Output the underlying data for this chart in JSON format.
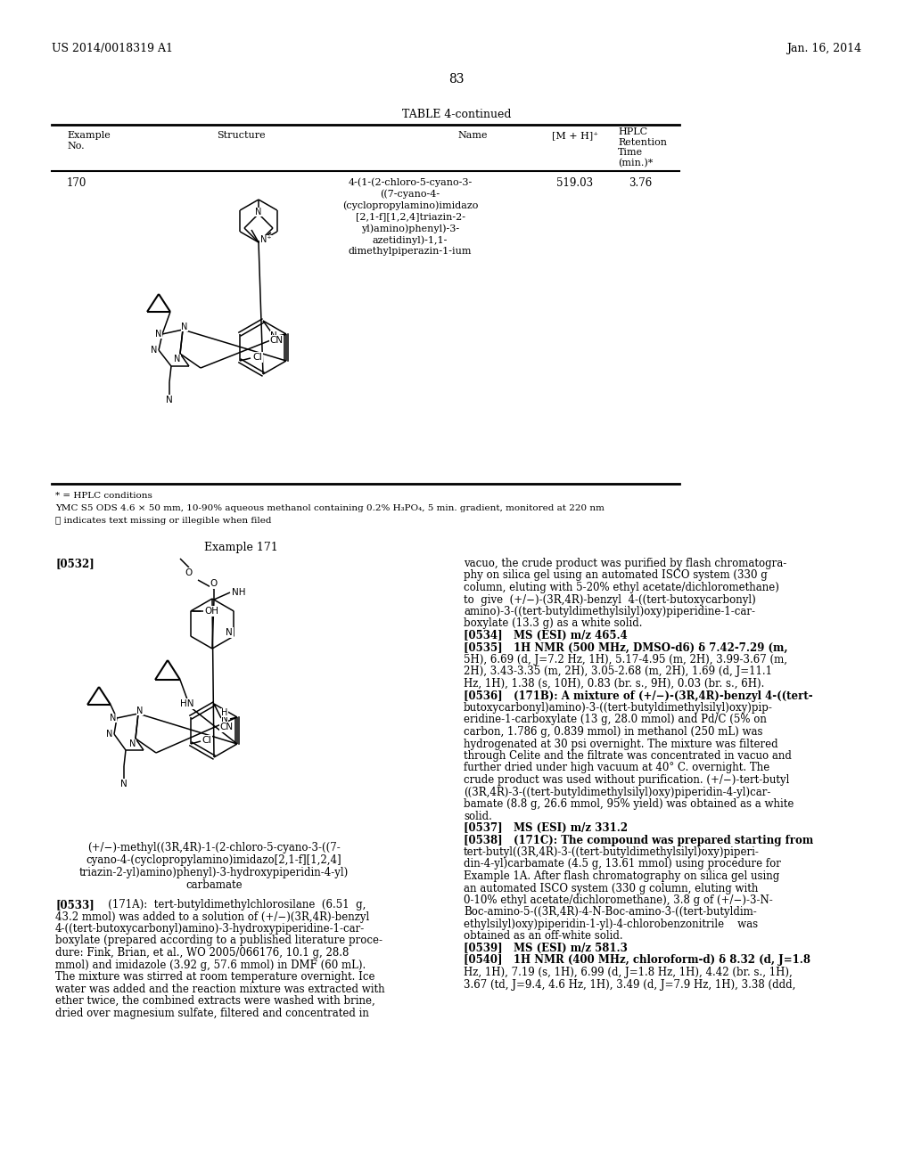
{
  "page_number": "83",
  "patent_left": "US 2014/0018319 A1",
  "patent_right": "Jan. 16, 2014",
  "table_title": "TABLE 4-continued",
  "example_no": "170",
  "name_170_lines": [
    "4-(1-(2-chloro-5-cyano-3-",
    "((7-cyano-4-",
    "(cyclopropylamino)imidazo",
    "[2,1-f][1,2,4]triazin-2-",
    "yl)amino)phenyl)-3-",
    "azetidinyl)-1,1-",
    "dimethylpiperazin-1-ium"
  ],
  "mh_170": "519.03",
  "rt_170": "3.76",
  "footnote1": "* = HPLC conditions",
  "footnote2": "YMC S5 ODS 4.6 × 50 mm, 10-90% aqueous methanol containing 0.2% H₃PO₄, 5 min. gradient, monitored at 220 nm",
  "footnote3": "ⓘ indicates text missing or illegible when filed",
  "example_171_title": "Example 171",
  "para_0532_label": "[0532]",
  "caption_171_lines": [
    "(+/−)-methyl((3R,4R)-1-(2-chloro-5-cyano-3-((7-",
    "cyano-4-(cyclopropylamino)imidazo[2,1-f][1,2,4]",
    "triazin-2-yl)amino)phenyl)-3-hydroxypiperidin-4-yl)",
    "carbamate"
  ],
  "left_col_paras": [
    {
      "label": "[0533]",
      "text": "   (171A):  tert-butyldimethylchlorosilane  (6.51  g,"
    },
    {
      "label": "",
      "text": "43.2 mmol) was added to a solution of (+/−)(3R,4R)-benzyl"
    },
    {
      "label": "",
      "text": "4-((tert-butoxycarbonyl)amino)-3-hydroxypiperidine-1-car-"
    },
    {
      "label": "",
      "text": "boxylate (prepared according to a published literature proce-"
    },
    {
      "label": "",
      "text": "dure: Fink, Brian, et al., WO 2005/066176, 10.1 g, 28.8"
    },
    {
      "label": "",
      "text": "mmol) and imidazole (3.92 g, 57.6 mmol) in DMF (60 mL)."
    },
    {
      "label": "",
      "text": "The mixture was stirred at room temperature overnight. Ice"
    },
    {
      "label": "",
      "text": "water was added and the reaction mixture was extracted with"
    },
    {
      "label": "",
      "text": "ether twice, the combined extracts were washed with brine,"
    },
    {
      "label": "",
      "text": "dried over magnesium sulfate, filtered and concentrated in"
    }
  ],
  "right_col_paras": [
    "vacuo, the crude product was purified by flash chromatogra-",
    "phy on silica gel using an automated ISCO system (330 g",
    "column, eluting with 5-20% ethyl acetate/dichloromethane)",
    "to  give  (+/−)-(3R,4R)-benzyl  4-((tert-butoxycarbonyl)",
    "amino)-3-((tert-butyldimethylsilyl)oxy)piperidine-1-car-",
    "boxylate (13.3 g) as a white solid.",
    "[0534]   MS (ESI) m/z 465.4",
    "[0535]   1H NMR (500 MHz, DMSO-d6) δ 7.42-7.29 (m,",
    "5H), 6.69 (d, J=7.2 Hz, 1H), 5.17-4.95 (m, 2H), 3.99-3.67 (m,",
    "2H), 3.43-3.35 (m, 2H), 3.05-2.68 (m, 2H), 1.69 (d, J=11.1",
    "Hz, 1H), 1.38 (s, 10H), 0.83 (br. s., 9H), 0.03 (br. s., 6H).",
    "[0536]   (171B): A mixture of (+/−)-(3R,4R)-benzyl 4-((tert-",
    "butoxycarbonyl)amino)-3-((tert-butyldimethylsilyl)oxy)pip-",
    "eridine-1-carboxylate (13 g, 28.0 mmol) and Pd/C (5% on",
    "carbon, 1.786 g, 0.839 mmol) in methanol (250 mL) was",
    "hydrogenated at 30 psi overnight. The mixture was filtered",
    "through Celite and the filtrate was concentrated in vacuo and",
    "further dried under high vacuum at 40° C. overnight. The",
    "crude product was used without purification. (+/−)-tert-butyl",
    "((3R,4R)-3-((tert-butyldimethylsilyl)oxy)piperidin-4-yl)car-",
    "bamate (8.8 g, 26.6 mmol, 95% yield) was obtained as a white",
    "solid.",
    "[0537]   MS (ESI) m/z 331.2",
    "[0538]   (171C): The compound was prepared starting from",
    "tert-butyl((3R,4R)-3-((tert-butyldimethylsilyl)oxy)piperi-",
    "din-4-yl)carbamate (4.5 g, 13.61 mmol) using procedure for",
    "Example 1A. After flash chromatography on silica gel using",
    "an automated ISCO system (330 g column, eluting with",
    "0-10% ethyl acetate/dichloromethane), 3.8 g of (+/−)-3-N-",
    "Boc-amino-5-((3R,4R)-4-N-Boc-amino-3-((tert-butyldim-",
    "ethylsilyl)oxy)piperidin-1-yl)-4-chlorobenzonitrile    was",
    "obtained as an off-white solid.",
    "[0539]   MS (ESI) m/z 581.3",
    "[0540]   1H NMR (400 MHz, chloroform-d) δ 8.32 (d, J=1.8",
    "Hz, 1H), 7.19 (s, 1H), 6.99 (d, J=1.8 Hz, 1H), 4.42 (br. s., 1H),",
    "3.67 (td, J=9.4, 4.6 Hz, 1H), 3.49 (d, J=7.9 Hz, 1H), 3.38 (ddd,"
  ],
  "bg_color": "#ffffff",
  "text_color": "#000000"
}
